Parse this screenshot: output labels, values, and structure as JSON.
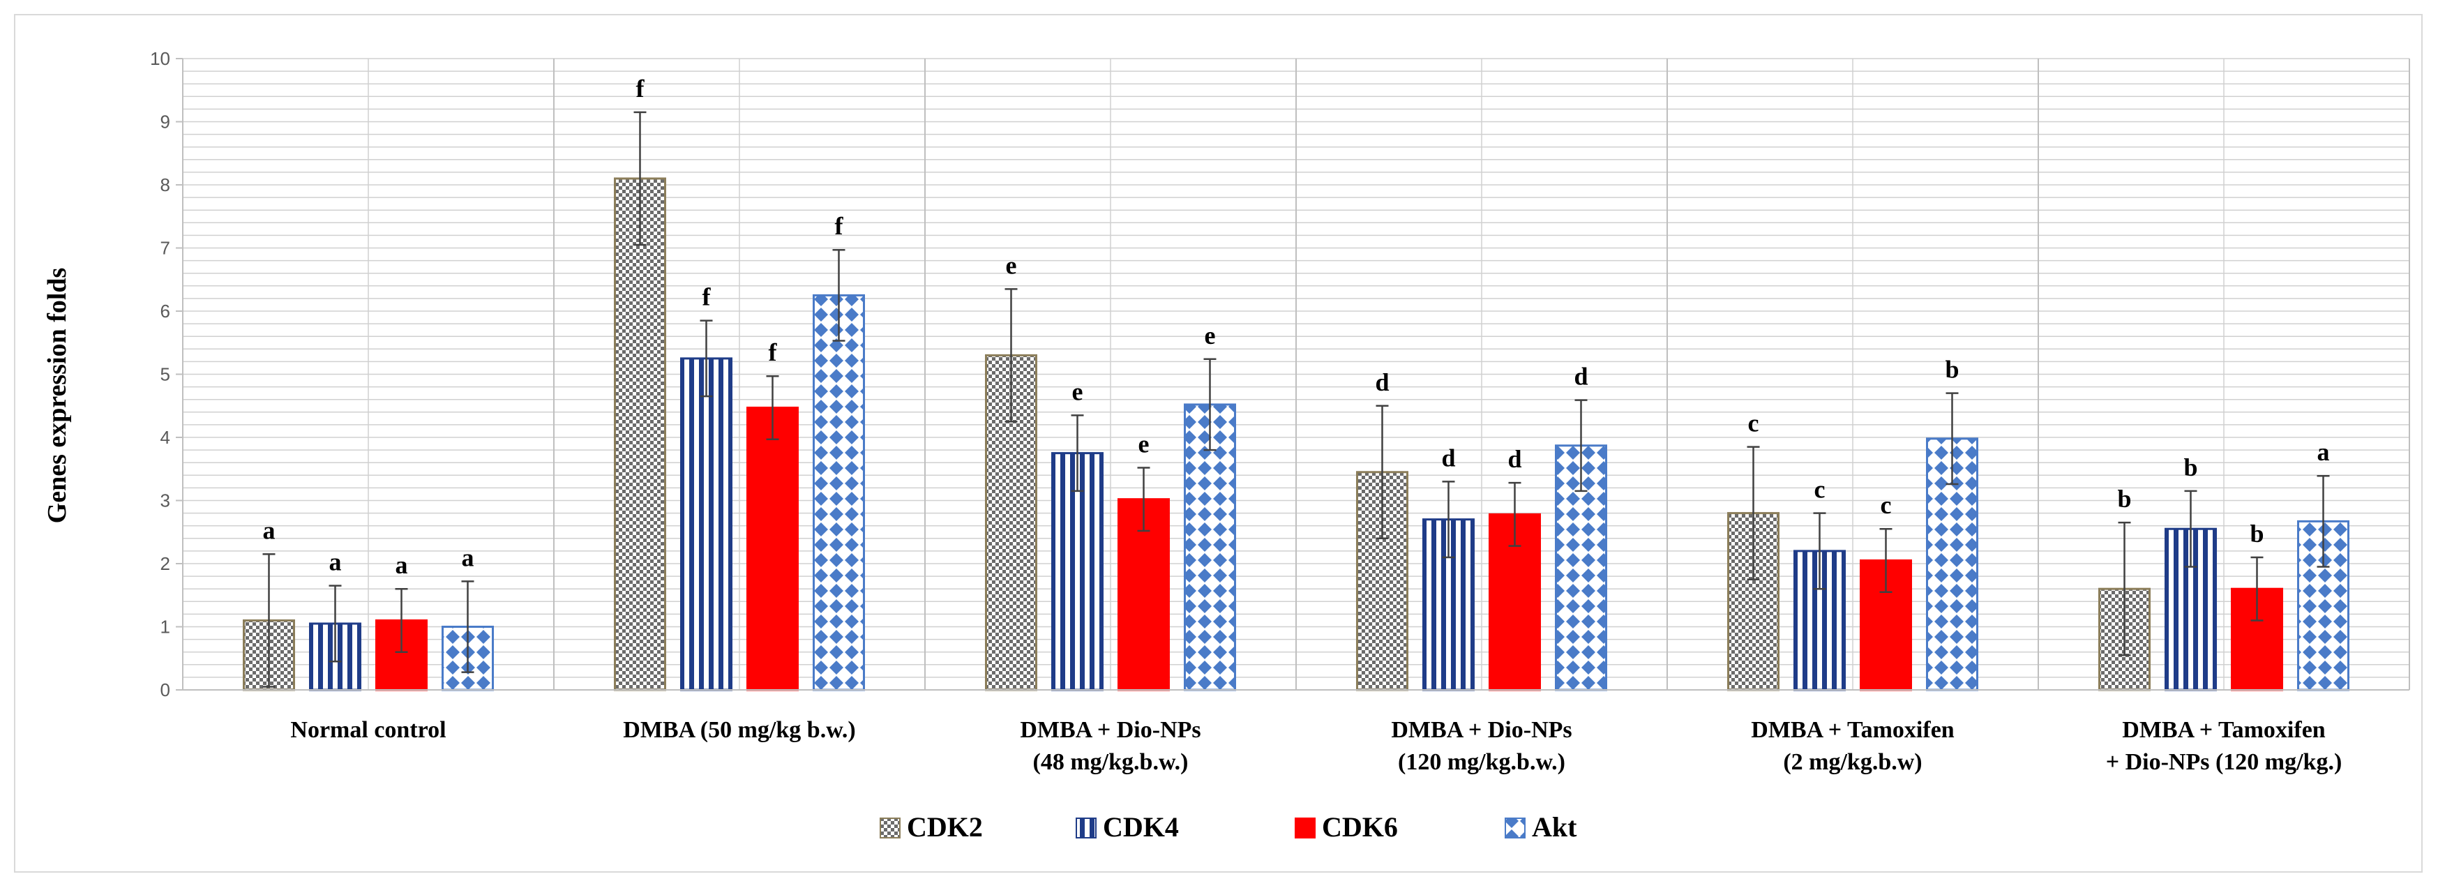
{
  "chart_data": {
    "type": "bar",
    "title": "",
    "xlabel": "",
    "ylabel": "Genes expression folds",
    "ylim": [
      0,
      10
    ],
    "yticks": [
      "0",
      "1",
      "2",
      "3",
      "4",
      "5",
      "6",
      "7",
      "8",
      "9",
      "10"
    ],
    "grid": true,
    "legend_position": "bottom",
    "categories": [
      [
        "Normal control"
      ],
      [
        "DMBA (50 mg/kg b.w.)"
      ],
      [
        "DMBA + Dio-NPs",
        "(48 mg/kg.b.w.)"
      ],
      [
        "DMBA + Dio-NPs",
        "(120 mg/kg.b.w.)"
      ],
      [
        "DMBA + Tamoxifen",
        "(2 mg/kg.b.w)"
      ],
      [
        "DMBA + Tamoxifen",
        "+ Dio-NPs (120 mg/kg.)"
      ]
    ],
    "series": [
      {
        "name": "CDK2",
        "color": "#8c7e5a",
        "pattern": "checker",
        "values": [
          1.1,
          8.1,
          5.3,
          3.45,
          2.8,
          1.6
        ],
        "errors": [
          1.05,
          1.05,
          1.05,
          1.05,
          1.05,
          1.05
        ],
        "labels": [
          "a",
          "f",
          "e",
          "d",
          "c",
          "b"
        ]
      },
      {
        "name": "CDK4",
        "color": "#1f3c88",
        "pattern": "vertical-stripes",
        "values": [
          1.05,
          5.25,
          3.75,
          2.7,
          2.2,
          2.55
        ],
        "errors": [
          0.6,
          0.6,
          0.6,
          0.6,
          0.6,
          0.6
        ],
        "labels": [
          "a",
          "f",
          "e",
          "d",
          "c",
          "b"
        ]
      },
      {
        "name": "CDK6",
        "color": "#ff0000",
        "pattern": "solid",
        "values": [
          1.1,
          4.47,
          3.02,
          2.78,
          2.05,
          1.6
        ],
        "errors": [
          0.5,
          0.5,
          0.5,
          0.5,
          0.5,
          0.5
        ],
        "labels": [
          "a",
          "f",
          "e",
          "d",
          "c",
          "b"
        ]
      },
      {
        "name": "Akt",
        "color": "#4a7bc8",
        "pattern": "diamond",
        "values": [
          1.0,
          6.25,
          4.52,
          3.87,
          3.98,
          2.67
        ],
        "errors": [
          0.72,
          0.72,
          0.72,
          0.72,
          0.72,
          0.72
        ],
        "labels": [
          "a",
          "f",
          "e",
          "d",
          "b",
          "a"
        ]
      }
    ]
  }
}
